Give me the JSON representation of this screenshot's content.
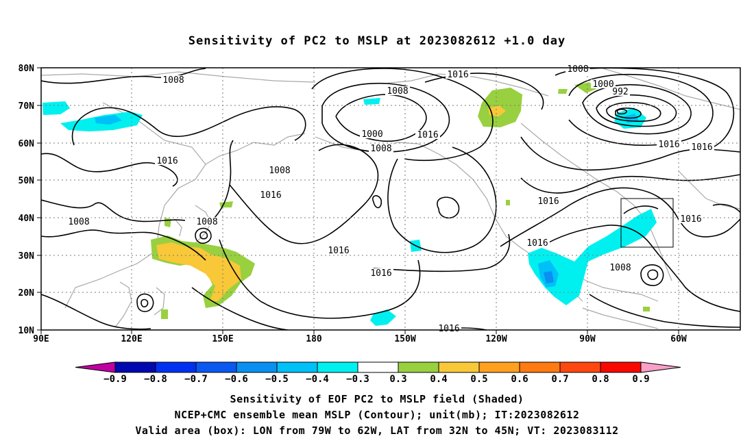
{
  "title": "Sensitivity of PC2 to MSLP at 2023082612 +1.0 day",
  "map": {
    "lat_labels": [
      "80N",
      "70N",
      "60N",
      "50N",
      "40N",
      "30N",
      "20N",
      "10N"
    ],
    "lon_labels": [
      "90E",
      "120E",
      "150E",
      "180",
      "150W",
      "120W",
      "90W",
      "60W"
    ],
    "contour_labels": [
      "1008",
      "1016",
      "1008",
      "1016",
      "1008",
      "1016",
      "1016",
      "1000",
      "992",
      "1008",
      "1016",
      "1008",
      "1000",
      "1008",
      "1016",
      "1008",
      "1016",
      "1016",
      "1016",
      "1016",
      "1016",
      "1008",
      "1016",
      "1008"
    ],
    "valid_box": {
      "lon_min": -79,
      "lon_max": -62,
      "lat_min": 32,
      "lat_max": 45
    }
  },
  "colorbar": {
    "labels": [
      "−0.9",
      "−0.8",
      "−0.7",
      "−0.6",
      "−0.5",
      "−0.4",
      "−0.3",
      "0.3",
      "0.4",
      "0.5",
      "0.6",
      "0.7",
      "0.8",
      "0.9"
    ],
    "colors": [
      "#0008b0",
      "#0030f0",
      "#0a58f0",
      "#0a90f0",
      "#00c0f8",
      "#00f0f0",
      "#ffffff",
      "#98d040",
      "#f8c838",
      "#ffa020",
      "#ff7a10",
      "#ff4810",
      "#f80800"
    ],
    "low_arrow_color": "#c000a0",
    "high_arrow_color": "#f8a0c8"
  },
  "footer": {
    "line1": "Sensitivity of EOF PC2 to MSLP field (Shaded)",
    "line2": "NCEP+CMC ensemble mean MSLP (Contour); unit(mb); IT:2023082612",
    "line3": "Valid area (box): LON from 79W to 62W, LAT from 32N to 45N; VT: 2023083112"
  }
}
